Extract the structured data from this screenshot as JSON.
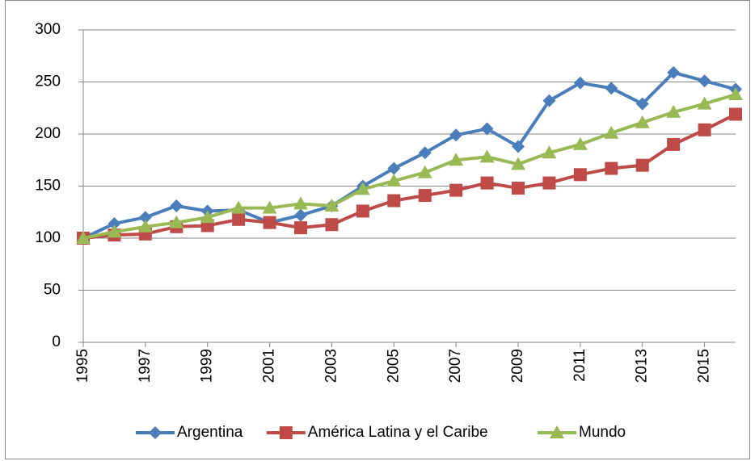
{
  "chart_data": {
    "type": "line",
    "x": [
      1995,
      1996,
      1997,
      1998,
      1999,
      2000,
      2001,
      2002,
      2003,
      2004,
      2005,
      2006,
      2007,
      2008,
      2009,
      2010,
      2011,
      2012,
      2013,
      2014,
      2015,
      2016
    ],
    "xlim": [
      1995,
      2016
    ],
    "xticks": [
      1995,
      1997,
      1999,
      2001,
      2003,
      2005,
      2007,
      2009,
      2011,
      2013,
      2015
    ],
    "ylim": [
      0,
      300
    ],
    "yticks": [
      0,
      50,
      100,
      150,
      200,
      250,
      300
    ],
    "grid": true,
    "legend": "bottom",
    "series": [
      {
        "name": "Argentina",
        "color": "#4a7ebb",
        "marker": "diamond",
        "values": [
          100,
          114,
          120,
          131,
          126,
          127,
          115,
          122,
          131,
          150,
          167,
          182,
          199,
          205,
          188,
          232,
          249,
          244,
          229,
          259,
          251,
          243
        ]
      },
      {
        "name": "América Latina y el Caribe",
        "color": "#be4b48",
        "marker": "square",
        "values": [
          100,
          103,
          104,
          111,
          112,
          118,
          115,
          110,
          113,
          126,
          136,
          141,
          146,
          153,
          148,
          153,
          161,
          167,
          170,
          190,
          204,
          219
        ]
      },
      {
        "name": "Mundo",
        "color": "#98b954",
        "marker": "triangle",
        "values": [
          100,
          106,
          111,
          115,
          120,
          129,
          129,
          133,
          131,
          147,
          155,
          163,
          175,
          178,
          171,
          182,
          190,
          201,
          211,
          221,
          229,
          238
        ]
      }
    ]
  }
}
